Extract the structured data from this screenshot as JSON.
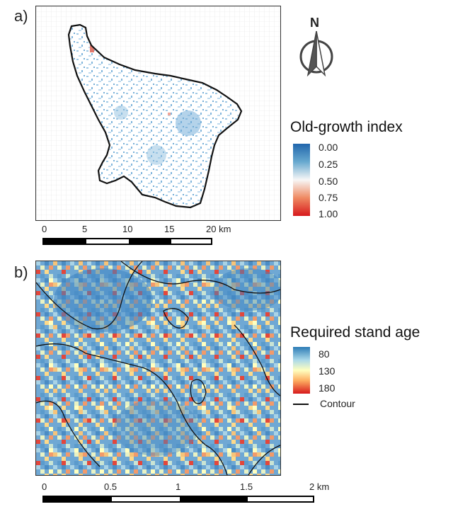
{
  "panel_a": {
    "label": "a)",
    "legend_title": "Old-growth index",
    "legend_ticks": [
      "0.00",
      "0.25",
      "0.50",
      "0.75",
      "1.00"
    ],
    "axis_ticks": [
      "0",
      "5",
      "10",
      "15",
      "20 km"
    ],
    "north_label": "N"
  },
  "panel_b": {
    "label": "b)",
    "legend_title": "Required stand age",
    "legend_ticks": [
      "80",
      "130",
      "180"
    ],
    "contour_label": "Contour",
    "axis_ticks": [
      "0",
      "0.5",
      "1",
      "1.5",
      "2 km"
    ]
  },
  "colors": {
    "index_low": "#2166ac",
    "index_high": "#d7191c",
    "age_low": "#2c7bb6",
    "age_mid": "#ffffbf",
    "age_high": "#d7191c"
  }
}
